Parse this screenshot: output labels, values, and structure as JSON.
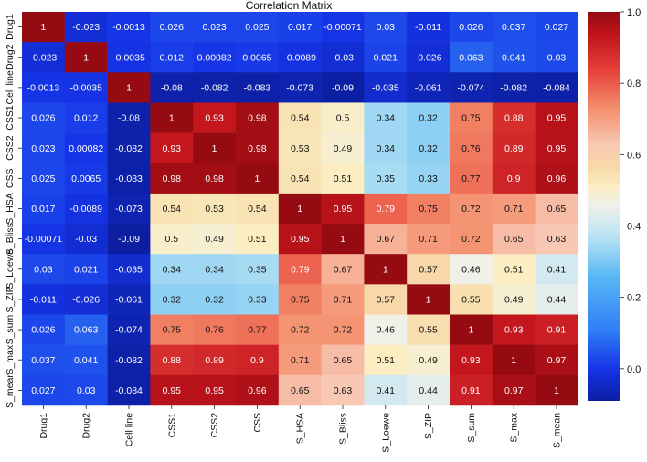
{
  "chart_data": {
    "type": "heatmap",
    "title": "Correlation Matrix",
    "labels": [
      "Drug1",
      "Drug2",
      "Cell line",
      "CSS1",
      "CSS2",
      "CSS",
      "S_HSA",
      "S_Bliss",
      "S_Loewe",
      "S_ZIP",
      "S_sum",
      "S_max",
      "S_mean"
    ],
    "matrix": [
      [
        1,
        -0.023,
        -0.0013,
        0.026,
        0.023,
        0.025,
        0.017,
        -0.00071,
        0.03,
        -0.011,
        0.026,
        0.037,
        0.027
      ],
      [
        -0.023,
        1,
        -0.0035,
        0.012,
        0.00082,
        0.0065,
        -0.0089,
        -0.03,
        0.021,
        -0.026,
        0.063,
        0.041,
        0.03
      ],
      [
        -0.0013,
        -0.0035,
        1,
        -0.08,
        -0.082,
        -0.083,
        -0.073,
        -0.09,
        -0.035,
        -0.061,
        -0.074,
        -0.082,
        -0.084
      ],
      [
        0.026,
        0.012,
        -0.08,
        1,
        0.93,
        0.98,
        0.54,
        0.5,
        0.34,
        0.32,
        0.75,
        0.88,
        0.95
      ],
      [
        0.023,
        0.00082,
        -0.082,
        0.93,
        1,
        0.98,
        0.53,
        0.49,
        0.34,
        0.32,
        0.76,
        0.89,
        0.95
      ],
      [
        0.025,
        0.0065,
        -0.083,
        0.98,
        0.98,
        1,
        0.54,
        0.51,
        0.35,
        0.33,
        0.77,
        0.9,
        0.96
      ],
      [
        0.017,
        -0.0089,
        -0.073,
        0.54,
        0.53,
        0.54,
        1,
        0.95,
        0.79,
        0.75,
        0.72,
        0.71,
        0.65
      ],
      [
        -0.00071,
        -0.03,
        -0.09,
        0.5,
        0.49,
        0.51,
        0.95,
        1,
        0.67,
        0.71,
        0.72,
        0.65,
        0.63
      ],
      [
        0.03,
        0.021,
        -0.035,
        0.34,
        0.34,
        0.35,
        0.79,
        0.67,
        1,
        0.57,
        0.46,
        0.51,
        0.41
      ],
      [
        -0.011,
        -0.026,
        -0.061,
        0.32,
        0.32,
        0.33,
        0.75,
        0.71,
        0.57,
        1,
        0.55,
        0.49,
        0.44
      ],
      [
        0.026,
        0.063,
        -0.074,
        0.75,
        0.76,
        0.77,
        0.72,
        0.72,
        0.46,
        0.55,
        1,
        0.93,
        0.91
      ],
      [
        0.037,
        0.041,
        -0.082,
        0.88,
        0.89,
        0.9,
        0.71,
        0.65,
        0.51,
        0.49,
        0.93,
        1,
        0.97
      ],
      [
        0.027,
        0.03,
        -0.084,
        0.95,
        0.95,
        0.96,
        0.65,
        0.63,
        0.41,
        0.44,
        0.91,
        0.97,
        1
      ]
    ],
    "annotations": [
      [
        "1",
        "-0.023",
        "-0.0013",
        "0.026",
        "0.023",
        "0.025",
        "0.017",
        "-0.00071",
        "0.03",
        "-0.011",
        "0.026",
        "0.037",
        "0.027"
      ],
      [
        "-0.023",
        "1",
        "-0.0035",
        "0.012",
        "0.00082",
        "0.0065",
        "-0.0089",
        "-0.03",
        "0.021",
        "-0.026",
        "0.063",
        "0.041",
        "0.03"
      ],
      [
        "-0.0013",
        "-0.0035",
        "1",
        "-0.08",
        "-0.082",
        "-0.083",
        "-0.073",
        "-0.09",
        "-0.035",
        "-0.061",
        "-0.074",
        "-0.082",
        "-0.084"
      ],
      [
        "0.026",
        "0.012",
        "-0.08",
        "1",
        "0.93",
        "0.98",
        "0.54",
        "0.5",
        "0.34",
        "0.32",
        "0.75",
        "0.88",
        "0.95"
      ],
      [
        "0.023",
        "0.00082",
        "-0.082",
        "0.93",
        "1",
        "0.98",
        "0.53",
        "0.49",
        "0.34",
        "0.32",
        "0.76",
        "0.89",
        "0.95"
      ],
      [
        "0.025",
        "0.0065",
        "-0.083",
        "0.98",
        "0.98",
        "1",
        "0.54",
        "0.51",
        "0.35",
        "0.33",
        "0.77",
        "0.9",
        "0.96"
      ],
      [
        "0.017",
        "-0.0089",
        "-0.073",
        "0.54",
        "0.53",
        "0.54",
        "1",
        "0.95",
        "0.79",
        "0.75",
        "0.72",
        "0.71",
        "0.65"
      ],
      [
        "-0.00071",
        "-0.03",
        "-0.09",
        "0.5",
        "0.49",
        "0.51",
        "0.95",
        "1",
        "0.67",
        "0.71",
        "0.72",
        "0.65",
        "0.63"
      ],
      [
        "0.03",
        "0.021",
        "-0.035",
        "0.34",
        "0.34",
        "0.35",
        "0.79",
        "0.67",
        "1",
        "0.57",
        "0.46",
        "0.51",
        "0.41"
      ],
      [
        "-0.011",
        "-0.026",
        "-0.061",
        "0.32",
        "0.32",
        "0.33",
        "0.75",
        "0.71",
        "0.57",
        "1",
        "0.55",
        "0.49",
        "0.44"
      ],
      [
        "0.026",
        "0.063",
        "-0.074",
        "0.75",
        "0.76",
        "0.77",
        "0.72",
        "0.72",
        "0.46",
        "0.55",
        "1",
        "0.93",
        "0.91"
      ],
      [
        "0.037",
        "0.041",
        "-0.082",
        "0.88",
        "0.89",
        "0.9",
        "0.71",
        "0.65",
        "0.51",
        "0.49",
        "0.93",
        "1",
        "0.97"
      ],
      [
        "0.027",
        "0.03",
        "-0.084",
        "0.95",
        "0.95",
        "0.96",
        "0.65",
        "0.63",
        "0.41",
        "0.44",
        "0.91",
        "0.97",
        "1"
      ]
    ],
    "colormap": {
      "name": "coolwarm-like",
      "vmin": -0.09,
      "vmax": 1.0,
      "stops": [
        [
          0.0,
          "#0c1fa3"
        ],
        [
          0.08,
          "#1533e6"
        ],
        [
          0.18,
          "#2f7df5"
        ],
        [
          0.32,
          "#58b8f5"
        ],
        [
          0.42,
          "#b8e3f3"
        ],
        [
          0.5,
          "#f0f0ec"
        ],
        [
          0.55,
          "#faeec2"
        ],
        [
          0.6,
          "#f8d9a8"
        ],
        [
          0.66,
          "#f8c8b4"
        ],
        [
          0.75,
          "#f4906e"
        ],
        [
          0.85,
          "#e6413a"
        ],
        [
          0.94,
          "#c1141c"
        ],
        [
          1.0,
          "#960b12"
        ]
      ]
    },
    "colorbar": {
      "ticks": [
        0.0,
        0.2,
        0.4,
        0.6,
        0.8,
        1.0
      ],
      "tick_labels": [
        "0.0",
        "0.2",
        "0.4",
        "0.6",
        "0.8",
        "1.0"
      ]
    }
  }
}
